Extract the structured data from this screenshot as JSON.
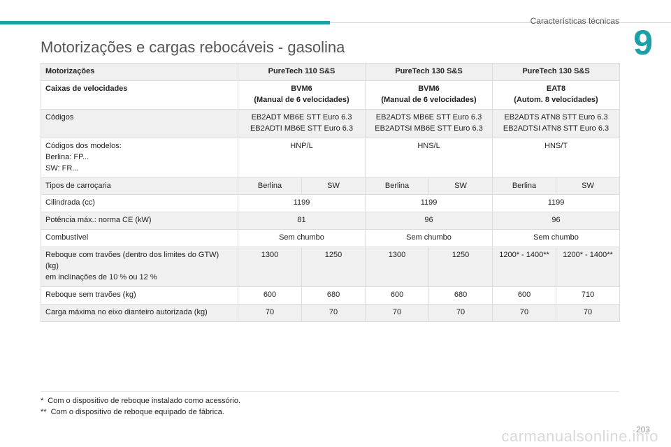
{
  "header": {
    "section_title": "Características técnicas",
    "chapter_number": "9",
    "accent_color": "#1aa0a6"
  },
  "page_title": "Motorizações e cargas rebocáveis - gasolina",
  "table": {
    "rows": [
      {
        "label": "Motorizações",
        "cells": [
          "PureTech 110 S&S",
          "PureTech 130 S&S",
          "PureTech 130 S&S"
        ]
      },
      {
        "label": "Caixas de velocidades",
        "cells": [
          [
            "BVM6",
            "(Manual de 6 velocidades)"
          ],
          [
            "BVM6",
            "(Manual de 6 velocidades)"
          ],
          [
            "EAT8",
            "(Autom. 8 velocidades)"
          ]
        ]
      },
      {
        "label": "Códigos",
        "cells": [
          [
            "EB2ADT MB6E STT Euro 6.3",
            "EB2ADTI MB6E STT Euro 6.3"
          ],
          [
            "EB2ADTS MB6E STT Euro 6.3",
            "EB2ADTSI MB6E STT Euro 6.3"
          ],
          [
            "EB2ADTS ATN8 STT Euro 6.3",
            "EB2ADTSI ATN8 STT Euro 6.3"
          ]
        ]
      },
      {
        "label": [
          "Códigos dos modelos:",
          "Berlina: FP...",
          "SW: FR..."
        ],
        "cells": [
          "HNP/L",
          "HNS/L",
          "HNS/T"
        ]
      },
      {
        "label": "Tipos de carroçaria",
        "cells": [
          "Berlina",
          "SW",
          "Berlina",
          "SW",
          "Berlina",
          "SW"
        ]
      },
      {
        "label": "Cilindrada (cc)",
        "cells": [
          "1199",
          "1199",
          "1199"
        ]
      },
      {
        "label": "Potência máx.: norma CE (kW)",
        "cells": [
          "81",
          "96",
          "96"
        ]
      },
      {
        "label": "Combustível",
        "cells": [
          "Sem chumbo",
          "Sem chumbo",
          "Sem chumbo"
        ]
      },
      {
        "label": [
          "Reboque com travões (dentro dos limites do GTW)",
          "(kg)",
          "em inclinações de 10 % ou 12 %"
        ],
        "cells": [
          "1300",
          "1250",
          "1300",
          "1250",
          "1200* - 1400**",
          "1200* - 1400**"
        ]
      },
      {
        "label": "Reboque sem travões (kg)",
        "cells": [
          "600",
          "680",
          "600",
          "680",
          "600",
          "710"
        ]
      },
      {
        "label": "Carga máxima no eixo dianteiro autorizada (kg)",
        "cells": [
          "70",
          "70",
          "70",
          "70",
          "70",
          "70"
        ]
      }
    ]
  },
  "footnotes": [
    {
      "mark": "*",
      "text": "Com o dispositivo de reboque instalado como acessório."
    },
    {
      "mark": "**",
      "text": "Com o dispositivo de reboque equipado de fábrica."
    }
  ],
  "page_number": "203",
  "watermark": "carmanualsonline.info"
}
